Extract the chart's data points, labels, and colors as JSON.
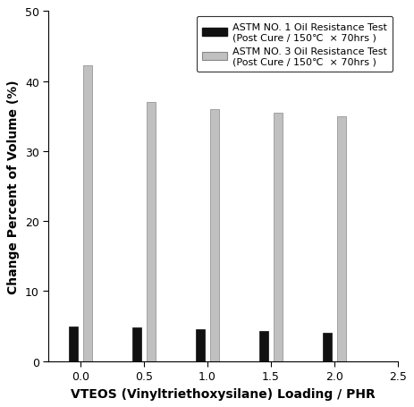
{
  "x_positions": [
    0.0,
    0.5,
    1.0,
    1.5,
    2.0
  ],
  "black_values": [
    5.0,
    4.8,
    4.6,
    4.3,
    4.1
  ],
  "gray_values": [
    42.2,
    37.0,
    36.0,
    35.5,
    35.0
  ],
  "bar_width": 0.07,
  "bar_gap": 0.04,
  "black_color": "#111111",
  "gray_color": "#c0c0c0",
  "gray_edge_color": "#888888",
  "xlabel": "VTEOS (Vinyltriethoxysilane) Loading / PHR",
  "ylabel": "Change Percent of Volume (%)",
  "xlim": [
    -0.25,
    2.5
  ],
  "ylim": [
    0,
    50
  ],
  "yticks": [
    0,
    10,
    20,
    30,
    40,
    50
  ],
  "xticks": [
    0.0,
    0.5,
    1.0,
    1.5,
    2.0,
    2.5
  ],
  "xtick_labels": [
    "0.0",
    "0.5",
    "1.0",
    "1.5",
    "2.0",
    "2.5"
  ],
  "legend_label1": "ASTM NO. 1 Oil Resistance Test\n(Post Cure / 150℃  × 70hrs )",
  "legend_label2": "ASTM NO. 3 Oil Resistance Test\n(Post Cure / 150℃  × 70hrs )",
  "background_color": "#ffffff",
  "legend_fontsize": 8.0,
  "xlabel_fontsize": 10,
  "ylabel_fontsize": 10,
  "tick_fontsize": 9,
  "figure_width": 4.63,
  "figure_height": 4.56,
  "dpi": 100
}
